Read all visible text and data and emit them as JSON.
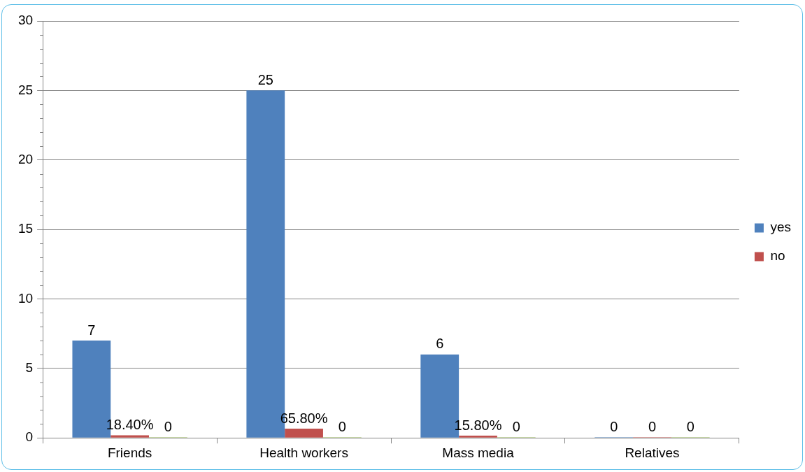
{
  "chart_data": {
    "type": "bar",
    "categories": [
      "Friends",
      "Health workers",
      "Mass media",
      "Relatives"
    ],
    "series": [
      {
        "name": "yes",
        "color": "#4f81bd",
        "values": [
          7,
          25,
          6,
          0
        ]
      },
      {
        "name": "no",
        "color": "#c0504d",
        "values": [
          0.184,
          0.658,
          0.158,
          0
        ],
        "value_labels": [
          "18.40%",
          "65.80%",
          "15.80%",
          "0"
        ]
      },
      {
        "color": "#9bbb59",
        "values": [
          0,
          0,
          0,
          0
        ]
      }
    ],
    "ylim": [
      0,
      30
    ],
    "yticks": [
      0,
      5,
      10,
      15,
      20,
      25,
      30
    ],
    "grid": "y",
    "legend": "right",
    "data_labels": true
  }
}
